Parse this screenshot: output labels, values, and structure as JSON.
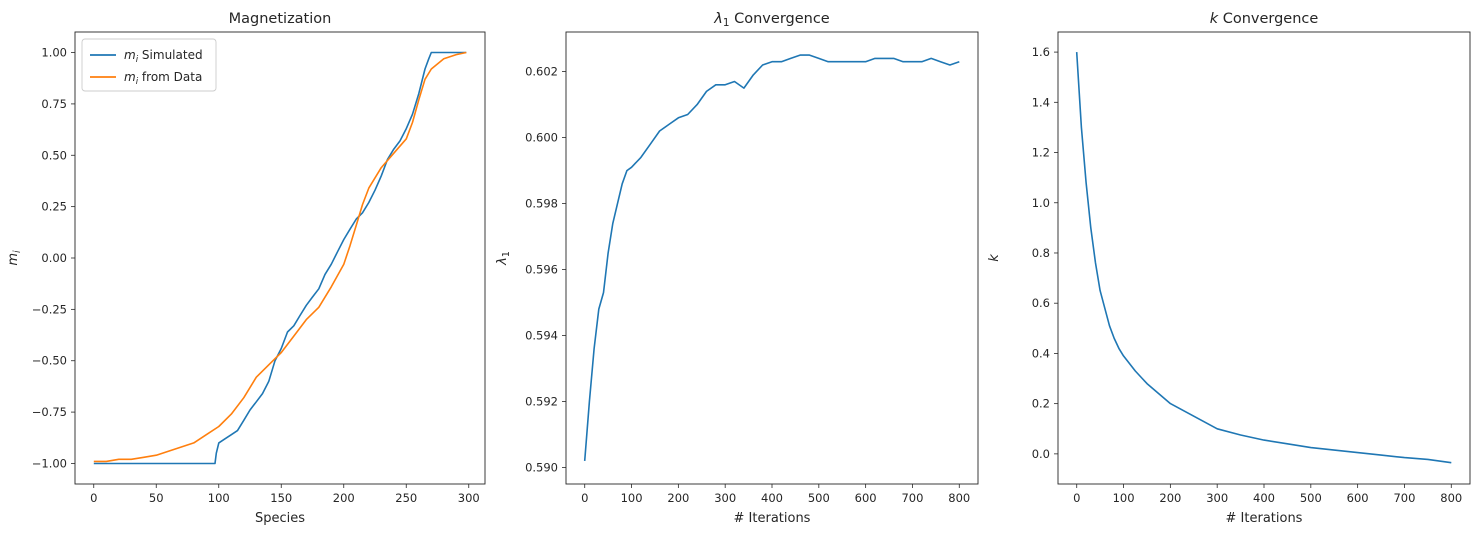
{
  "chart_data": [
    {
      "type": "line",
      "title": "Magnetization",
      "xlabel": "Species",
      "ylabel": "m_i",
      "xlim": [
        -15,
        313
      ],
      "ylim": [
        -1.1,
        1.1
      ],
      "xticks": [
        0,
        50,
        100,
        150,
        200,
        250,
        300
      ],
      "yticks": [
        -1.0,
        -0.75,
        -0.5,
        -0.25,
        0.0,
        0.25,
        0.5,
        0.75,
        1.0
      ],
      "ytick_labels": [
        "−1.00",
        "−0.75",
        "−0.50",
        "−0.25",
        "0.00",
        "0.25",
        "0.50",
        "0.75",
        "1.00"
      ],
      "grid": false,
      "legend": "top-left",
      "series": [
        {
          "name": "m_i Simulated",
          "color": "#1f77b4",
          "x": [
            0,
            20,
            50,
            80,
            97,
            98,
            100,
            105,
            110,
            115,
            120,
            125,
            130,
            135,
            140,
            145,
            150,
            155,
            160,
            165,
            170,
            175,
            180,
            185,
            190,
            195,
            200,
            205,
            210,
            215,
            220,
            225,
            230,
            235,
            240,
            245,
            250,
            255,
            260,
            265,
            268,
            270,
            280,
            290,
            298
          ],
          "values": [
            -1.0,
            -1.0,
            -1.0,
            -1.0,
            -1.0,
            -0.95,
            -0.9,
            -0.88,
            -0.86,
            -0.84,
            -0.79,
            -0.74,
            -0.7,
            -0.66,
            -0.6,
            -0.5,
            -0.44,
            -0.36,
            -0.33,
            -0.28,
            -0.23,
            -0.19,
            -0.15,
            -0.08,
            -0.03,
            0.03,
            0.09,
            0.14,
            0.19,
            0.22,
            0.27,
            0.33,
            0.4,
            0.48,
            0.53,
            0.57,
            0.63,
            0.7,
            0.8,
            0.92,
            0.97,
            1.0,
            1.0,
            1.0,
            1.0
          ]
        },
        {
          "name": "m_i from Data",
          "color": "#ff7f0e",
          "x": [
            0,
            10,
            20,
            30,
            40,
            50,
            60,
            70,
            80,
            90,
            100,
            110,
            120,
            130,
            140,
            150,
            160,
            170,
            180,
            190,
            200,
            205,
            210,
            215,
            220,
            230,
            240,
            250,
            255,
            260,
            265,
            270,
            280,
            290,
            298
          ],
          "values": [
            -0.99,
            -0.99,
            -0.98,
            -0.98,
            -0.97,
            -0.96,
            -0.94,
            -0.92,
            -0.9,
            -0.86,
            -0.82,
            -0.76,
            -0.68,
            -0.58,
            -0.52,
            -0.46,
            -0.38,
            -0.3,
            -0.24,
            -0.14,
            -0.03,
            0.06,
            0.16,
            0.26,
            0.34,
            0.44,
            0.51,
            0.58,
            0.66,
            0.77,
            0.87,
            0.92,
            0.97,
            0.99,
            1.0
          ]
        }
      ]
    },
    {
      "type": "line",
      "title": "λ₁ Convergence",
      "xlabel": "# Iterations",
      "ylabel": "λ₁",
      "xlim": [
        -40,
        840
      ],
      "ylim": [
        0.5895,
        0.6032
      ],
      "xticks": [
        0,
        100,
        200,
        300,
        400,
        500,
        600,
        700,
        800
      ],
      "yticks": [
        0.59,
        0.592,
        0.594,
        0.596,
        0.598,
        0.6,
        0.602
      ],
      "ytick_labels": [
        "0.590",
        "0.592",
        "0.594",
        "0.596",
        "0.598",
        "0.600",
        "0.602"
      ],
      "grid": false,
      "series": [
        {
          "name": "",
          "color": "#1f77b4",
          "x": [
            0,
            10,
            20,
            30,
            40,
            50,
            60,
            70,
            80,
            90,
            100,
            120,
            140,
            160,
            180,
            200,
            220,
            240,
            260,
            280,
            300,
            320,
            340,
            360,
            380,
            400,
            420,
            440,
            460,
            480,
            500,
            520,
            540,
            560,
            580,
            600,
            620,
            640,
            660,
            680,
            700,
            720,
            740,
            760,
            780,
            800
          ],
          "values": [
            0.5902,
            0.592,
            0.5936,
            0.5948,
            0.5953,
            0.5965,
            0.5974,
            0.598,
            0.5986,
            0.599,
            0.5991,
            0.5994,
            0.5998,
            0.6002,
            0.6004,
            0.6006,
            0.6007,
            0.601,
            0.6014,
            0.6016,
            0.6016,
            0.6017,
            0.6015,
            0.6019,
            0.6022,
            0.6023,
            0.6023,
            0.6024,
            0.6025,
            0.6025,
            0.6024,
            0.6023,
            0.6023,
            0.6023,
            0.6023,
            0.6023,
            0.6024,
            0.6024,
            0.6024,
            0.6023,
            0.6023,
            0.6023,
            0.6024,
            0.6023,
            0.6022,
            0.6023
          ]
        }
      ]
    },
    {
      "type": "line",
      "title": "k Convergence",
      "xlabel": "# Iterations",
      "ylabel": "k",
      "xlim": [
        -40,
        840
      ],
      "ylim": [
        -0.12,
        1.68
      ],
      "xticks": [
        0,
        100,
        200,
        300,
        400,
        500,
        600,
        700,
        800
      ],
      "yticks": [
        0.0,
        0.2,
        0.4,
        0.6,
        0.8,
        1.0,
        1.2,
        1.4,
        1.6
      ],
      "ytick_labels": [
        "0.0",
        "0.2",
        "0.4",
        "0.6",
        "0.8",
        "1.0",
        "1.2",
        "1.4",
        "1.6"
      ],
      "grid": false,
      "series": [
        {
          "name": "",
          "color": "#1f77b4",
          "x": [
            0,
            10,
            20,
            30,
            40,
            50,
            60,
            70,
            80,
            90,
            100,
            125,
            150,
            175,
            200,
            250,
            300,
            350,
            400,
            450,
            500,
            550,
            600,
            650,
            700,
            750,
            800
          ],
          "values": [
            1.6,
            1.3,
            1.08,
            0.9,
            0.76,
            0.65,
            0.58,
            0.51,
            0.46,
            0.42,
            0.39,
            0.33,
            0.28,
            0.24,
            0.2,
            0.15,
            0.1,
            0.075,
            0.055,
            0.04,
            0.025,
            0.015,
            0.005,
            -0.005,
            -0.015,
            -0.022,
            -0.035
          ]
        }
      ]
    }
  ]
}
